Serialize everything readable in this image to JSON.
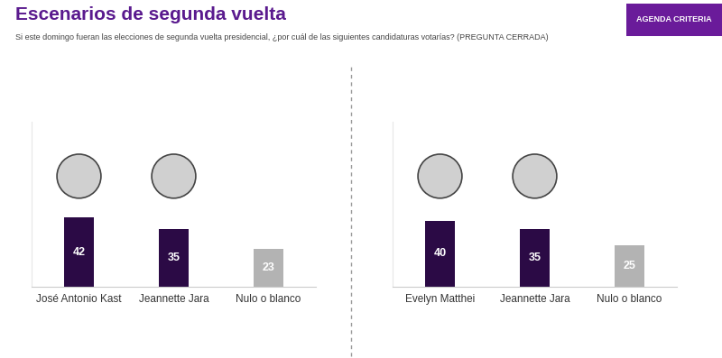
{
  "title": "Escenarios de segunda vuelta",
  "subtitle": "Si este domingo fueran las elecciones de segunda vuelta presidencial, ¿por cuál de las siguientes candidaturas votarías? (PREGUNTA CERRADA)",
  "button": "AGENDA CRITERIA",
  "chart_data": [
    {
      "type": "bar",
      "categories": [
        "José Antonio Kast",
        "Jeannette Jara",
        "Nulo o blanco"
      ],
      "values": [
        42,
        35,
        23
      ],
      "colors": [
        "#2b0a45",
        "#2b0a45",
        "#b3b3b3"
      ],
      "ylim": [
        0,
        100
      ],
      "data_labels": true,
      "tick_labels": "x"
    },
    {
      "type": "bar",
      "categories": [
        "Evelyn Matthei",
        "Jeannette Jara",
        "Nulo o blanco"
      ],
      "values": [
        40,
        35,
        25
      ],
      "colors": [
        "#2b0a45",
        "#2b0a45",
        "#b3b3b3"
      ],
      "ylim": [
        0,
        100
      ],
      "data_labels": true,
      "tick_labels": "x"
    }
  ]
}
